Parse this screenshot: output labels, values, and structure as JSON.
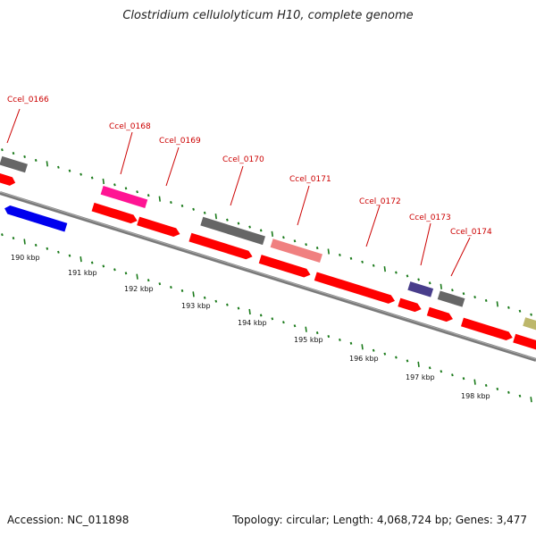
{
  "title": "Clostridium cellulolyticum H10, complete genome",
  "footer": {
    "accession": "Accession: NC_011898",
    "summary": "Topology: circular; Length: 4,068,724 bp; Genes: 3,477"
  },
  "colors": {
    "cds": "#ff0000",
    "grey_feature": "#666666",
    "magenta_feature": "#ff1493",
    "pink_feature": "#f08080",
    "blue_feature": "#0000ff",
    "navy_feature": "#483d8b",
    "olive_feature": "#bdb76b",
    "backbone": "#888888",
    "tick": "#006400",
    "label": "#cc0000"
  },
  "gene_labels": [
    "Ccel_0166",
    "Ccel_0168",
    "Ccel_0169",
    "Ccel_0170",
    "Ccel_0171",
    "Ccel_0172",
    "Ccel_0173",
    "Ccel_0174"
  ],
  "kbp_labels": [
    "190 kbp",
    "191 kbp",
    "192 kbp",
    "193 kbp",
    "194 kbp",
    "195 kbp",
    "196 kbp",
    "197 kbp",
    "198 kbp"
  ]
}
